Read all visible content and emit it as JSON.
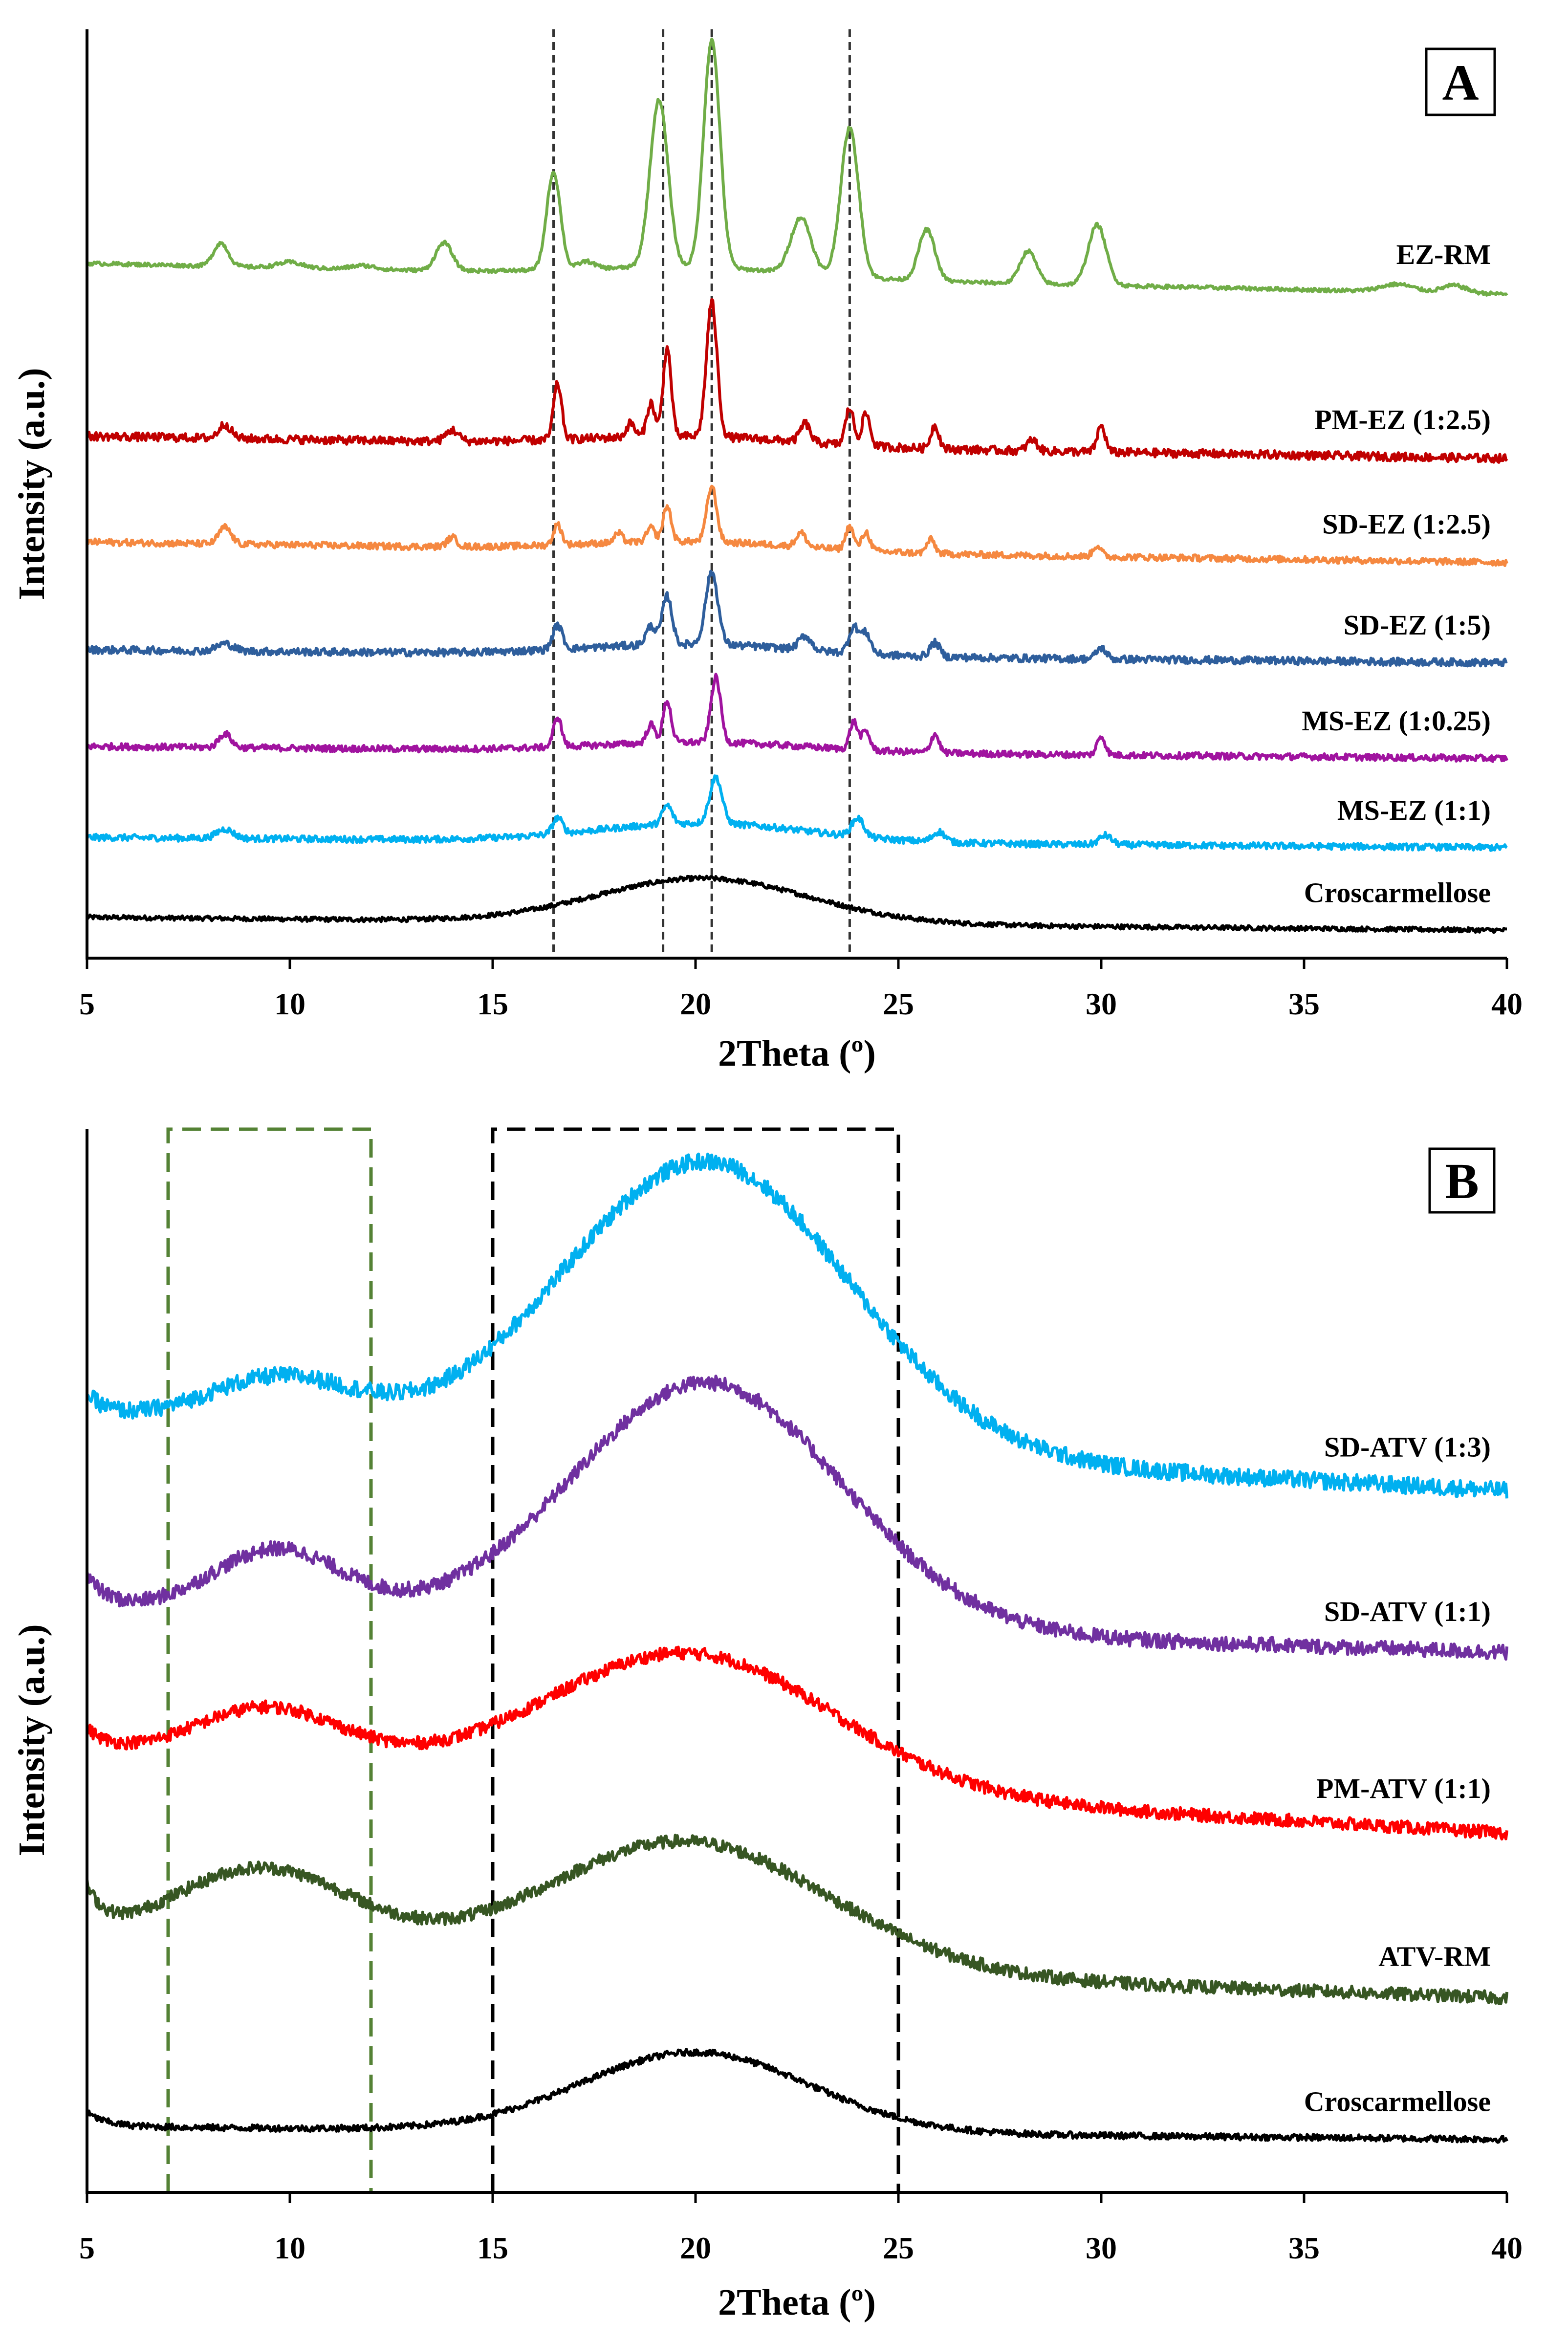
{
  "chart_data": [
    {
      "panel": "A",
      "type": "line",
      "title": "",
      "panel_label": "A",
      "xlabel": "2Theta (º)",
      "ylabel": "Intensity (a.u.)",
      "xlim": [
        5,
        40
      ],
      "ylim": [
        0,
        100
      ],
      "xticks": [
        5,
        10,
        15,
        20,
        25,
        30,
        35,
        40
      ],
      "grid": false,
      "reference_lines": [
        16.5,
        19.2,
        20.4,
        23.8
      ],
      "series": [
        {
          "name": "Croscarmellose",
          "color": "#000000",
          "baseline": 4.4,
          "amplitude": 1,
          "hump": {
            "center": 20.2,
            "height": 4.8,
            "width": 2.6
          },
          "end_value": 3.0,
          "peaks": [],
          "noise": 0.25
        },
        {
          "name": "MS-EZ (1:1)",
          "color": "#00B0F0",
          "baseline": 13.0,
          "amplitude": 1,
          "hump": {
            "center": 20.2,
            "height": 2.0,
            "width": 2.6
          },
          "end_value": 11.9,
          "peaks": [
            [
              8.4,
              1.0,
              0.2
            ],
            [
              16.6,
              1.7,
              0.12
            ],
            [
              19.3,
              2.0,
              0.12
            ],
            [
              20.5,
              5.0,
              0.15
            ],
            [
              24.0,
              2.0,
              0.15
            ],
            [
              26.0,
              1.1,
              0.15
            ],
            [
              30.1,
              1.0,
              0.15
            ]
          ],
          "noise": 0.35
        },
        {
          "name": "MS-EZ (1:0.25)",
          "color": "#A0139F",
          "baseline": 22.8,
          "amplitude": 1,
          "hump": {
            "center": 20.2,
            "height": 1.0,
            "width": 2.6
          },
          "end_value": 21.5,
          "peaks": [
            [
              8.4,
              1.5,
              0.15
            ],
            [
              16.6,
              3.2,
              0.1
            ],
            [
              18.9,
              2.0,
              0.1
            ],
            [
              19.3,
              4.5,
              0.1
            ],
            [
              20.5,
              7.0,
              0.12
            ],
            [
              23.9,
              3.0,
              0.1
            ],
            [
              24.2,
              2.0,
              0.1
            ],
            [
              25.9,
              2.0,
              0.1
            ],
            [
              30.0,
              2.0,
              0.1
            ]
          ],
          "noise": 0.35
        },
        {
          "name": "SD-EZ (1:5)",
          "color": "#2E5E9C",
          "baseline": 33.2,
          "amplitude": 1,
          "hump": {
            "center": 20.0,
            "height": 1.2,
            "width": 2.6
          },
          "end_value": 31.8,
          "peaks": [
            [
              8.4,
              0.8,
              0.2
            ],
            [
              16.6,
              2.6,
              0.12
            ],
            [
              18.9,
              2.0,
              0.12
            ],
            [
              19.3,
              5.2,
              0.12
            ],
            [
              20.4,
              7.8,
              0.15
            ],
            [
              22.7,
              1.5,
              0.15
            ],
            [
              23.9,
              2.8,
              0.12
            ],
            [
              24.2,
              2.2,
              0.12
            ],
            [
              25.9,
              1.5,
              0.12
            ],
            [
              30.0,
              1.2,
              0.12
            ]
          ],
          "noise": 0.4
        },
        {
          "name": "SD-EZ (1:2.5)",
          "color": "#F58840",
          "baseline": 44.8,
          "amplitude": 1,
          "hump": {
            "center": 20.0,
            "height": 1.0,
            "width": 2.6
          },
          "end_value": 42.6,
          "peaks": [
            [
              8.4,
              1.8,
              0.15
            ],
            [
              14.0,
              1.0,
              0.12
            ],
            [
              16.6,
              2.2,
              0.1
            ],
            [
              18.1,
              1.0,
              0.1
            ],
            [
              18.9,
              1.5,
              0.1
            ],
            [
              19.3,
              3.8,
              0.1
            ],
            [
              20.4,
              6.0,
              0.12
            ],
            [
              22.6,
              1.5,
              0.12
            ],
            [
              23.8,
              2.5,
              0.1
            ],
            [
              24.2,
              2.0,
              0.1
            ],
            [
              25.8,
              1.5,
              0.1
            ],
            [
              29.9,
              1.2,
              0.1
            ]
          ],
          "noise": 0.35
        },
        {
          "name": "PM-EZ (1:2.5)",
          "color": "#C00000",
          "baseline": 56.2,
          "amplitude": 1,
          "hump": {
            "center": 20.0,
            "height": 1.0,
            "width": 2.6
          },
          "end_value": 53.8,
          "peaks": [
            [
              8.4,
              1.5,
              0.15
            ],
            [
              14.0,
              1.2,
              0.15
            ],
            [
              16.6,
              6.0,
              0.1
            ],
            [
              18.4,
              1.5,
              0.1
            ],
            [
              18.9,
              3.6,
              0.1
            ],
            [
              19.3,
              9.5,
              0.1
            ],
            [
              20.4,
              14.5,
              0.13
            ],
            [
              22.7,
              2.0,
              0.12
            ],
            [
              23.8,
              4.0,
              0.1
            ],
            [
              24.2,
              3.5,
              0.1
            ],
            [
              25.9,
              2.5,
              0.1
            ],
            [
              28.3,
              1.2,
              0.12
            ],
            [
              30.0,
              2.8,
              0.1
            ]
          ],
          "noise": 0.45
        },
        {
          "name": "EZ-RM",
          "color": "#70AD47",
          "baseline": 74.8,
          "amplitude": 1,
          "hump": {
            "center": 20.0,
            "height": 1.0,
            "width": 2.6
          },
          "end_value": 71.5,
          "peaks": [
            [
              8.3,
              2.5,
              0.18
            ],
            [
              10.0,
              0.6,
              0.3
            ],
            [
              11.8,
              0.4,
              0.3
            ],
            [
              13.8,
              3.0,
              0.2
            ],
            [
              16.5,
              10.5,
              0.17
            ],
            [
              17.3,
              0.8,
              0.2
            ],
            [
              19.1,
              18.0,
              0.22
            ],
            [
              20.4,
              24.5,
              0.2
            ],
            [
              22.6,
              6.0,
              0.25
            ],
            [
              23.8,
              16.0,
              0.22
            ],
            [
              25.7,
              5.5,
              0.2
            ],
            [
              28.2,
              3.5,
              0.2
            ],
            [
              29.9,
              6.5,
              0.22
            ],
            [
              37.3,
              0.8,
              0.4
            ],
            [
              38.7,
              0.8,
              0.3
            ]
          ],
          "noise": 0.2
        }
      ]
    },
    {
      "panel": "B",
      "type": "line",
      "title": "",
      "panel_label": "B",
      "xlabel": "2Theta (º)",
      "ylabel": "Intensity (a.u.)",
      "xlim": [
        5,
        40
      ],
      "ylim": [
        0,
        100
      ],
      "xticks": [
        5,
        10,
        15,
        20,
        25,
        30,
        35,
        40
      ],
      "grid": false,
      "highlight_regions": [
        {
          "x_range": [
            7,
            12
          ],
          "color": "#548235"
        },
        {
          "x_range": [
            15,
            25
          ],
          "color": "#000000"
        }
      ],
      "series": [
        {
          "name": "Croscarmellose",
          "color": "#000000",
          "baseline": 6.2,
          "amplitude": 1,
          "hump": {
            "center": 20.0,
            "height": 7.5,
            "width": 2.8
          },
          "end_value": 5.0,
          "peaks": [],
          "start_bump": 1.3,
          "noise": 0.3
        },
        {
          "name": "ATV-RM",
          "color": "#375623",
          "baseline": 23.0,
          "amplitude": 1,
          "hump": {
            "center": 19.8,
            "height": 12.0,
            "width": 3.5
          },
          "hump2": {
            "center": 9.3,
            "height": 8.0,
            "width": 2.3
          },
          "end_value": 18.3,
          "peaks": [],
          "start_bump": 4.5,
          "noise": 0.6
        },
        {
          "name": "PM-ATV (1:1)",
          "color": "#FF0000",
          "baseline": 41.5,
          "amplitude": 1,
          "hump": {
            "center": 19.9,
            "height": 12.5,
            "width": 3.5
          },
          "hump2": {
            "center": 9.5,
            "height": 5.0,
            "width": 1.8
          },
          "end_value": 33.8,
          "peaks": [],
          "start_bump": 2.0,
          "noise": 0.6
        },
        {
          "name": "SD-ATV (1:1)",
          "color": "#7030A0",
          "baseline": 55.0,
          "amplitude": 1,
          "hump": {
            "center": 20.3,
            "height": 23.0,
            "width": 3.3
          },
          "hump2": {
            "center": 9.7,
            "height": 6.0,
            "width": 1.6
          },
          "end_value": 50.8,
          "peaks": [],
          "start_bump": 3.0,
          "noise": 0.7
        },
        {
          "name": "SD-ATV (1:3)",
          "color": "#00B0F0",
          "baseline": 73.0,
          "amplitude": 1,
          "hump": {
            "center": 20.3,
            "height": 27.0,
            "width": 3.5
          },
          "hump2": {
            "center": 9.8,
            "height": 4.5,
            "width": 1.8
          },
          "end_value": 66.0,
          "peaks": [],
          "start_bump": 2.0,
          "noise": 0.8
        }
      ]
    }
  ]
}
